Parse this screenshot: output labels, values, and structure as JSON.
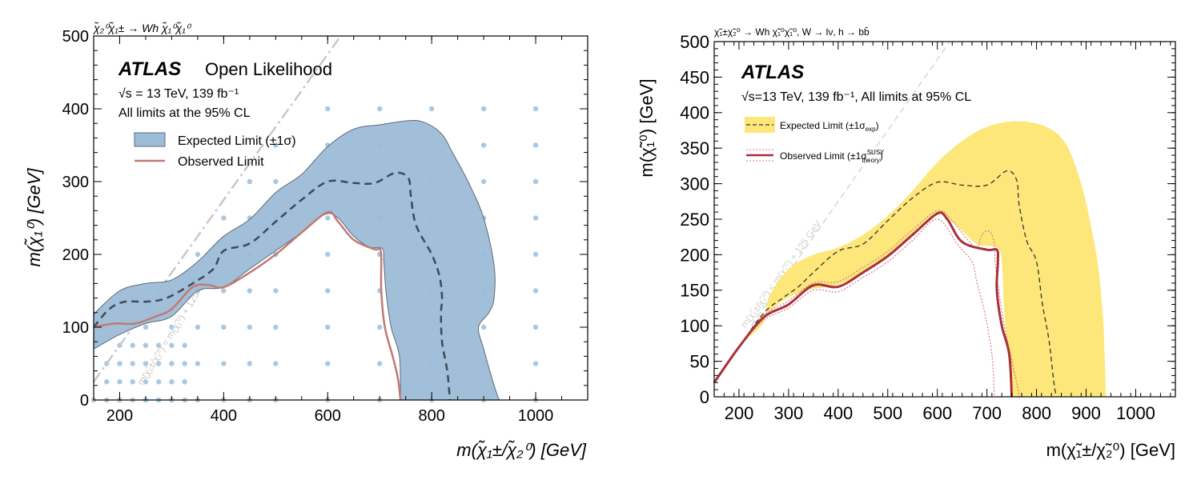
{
  "chart_data": [
    {
      "type": "area",
      "process_label": "χ̃₂⁰χ̃₁± → Wh χ̃₁⁰χ̃₁⁰",
      "experiment": "ATLAS",
      "subtitle": "Open Likelihood",
      "energy_label": "√s = 13 TeV, 139 fb⁻¹",
      "cl_label": "All limits at the 95% CL",
      "xlabel": "m(χ̃₁±/χ̃₂⁰) [GeV]",
      "ylabel": "m(χ̃₁⁰) [GeV]",
      "xlim": [
        150,
        1100
      ],
      "ylim": [
        0,
        500
      ],
      "xticks": [
        200,
        400,
        600,
        800,
        1000
      ],
      "yticks": [
        0,
        100,
        200,
        300,
        400,
        500
      ],
      "diagonal_label": "m(χ̃₁±/χ̃₂⁰) = m(χ̃₁⁰) + 125 GeV",
      "legend": [
        "Expected Limit (±1σ)",
        "Observed Limit"
      ],
      "colors": {
        "band": "#9dbcd8",
        "band_edge": "#5d6a78",
        "expected": "#3d4a58",
        "observed": "#c07a72",
        "points": "#a9c8e2",
        "diag": "#c8c8c8"
      },
      "band_upper": [
        [
          150,
          118
        ],
        [
          200,
          150
        ],
        [
          250,
          160
        ],
        [
          300,
          165
        ],
        [
          350,
          190
        ],
        [
          400,
          225
        ],
        [
          450,
          248
        ],
        [
          500,
          285
        ],
        [
          550,
          310
        ],
        [
          600,
          348
        ],
        [
          650,
          372
        ],
        [
          700,
          378
        ],
        [
          760,
          384
        ],
        [
          790,
          380
        ],
        [
          820,
          365
        ],
        [
          840,
          340
        ],
        [
          870,
          300
        ],
        [
          900,
          250
        ],
        [
          920,
          185
        ],
        [
          920,
          140
        ],
        [
          910,
          120
        ],
        [
          890,
          100
        ],
        [
          900,
          70
        ],
        [
          920,
          20
        ],
        [
          930,
          0
        ]
      ],
      "band_lower": [
        [
          150,
          70
        ],
        [
          200,
          90
        ],
        [
          250,
          105
        ],
        [
          300,
          115
        ],
        [
          350,
          150
        ],
        [
          400,
          155
        ],
        [
          450,
          180
        ],
        [
          500,
          205
        ],
        [
          550,
          230
        ],
        [
          595,
          255
        ],
        [
          620,
          250
        ],
        [
          650,
          225
        ],
        [
          680,
          210
        ],
        [
          705,
          208
        ],
        [
          708,
          190
        ],
        [
          712,
          150
        ],
        [
          722,
          100
        ],
        [
          738,
          60
        ],
        [
          740,
          0
        ]
      ],
      "expected": [
        [
          150,
          100
        ],
        [
          180,
          125
        ],
        [
          210,
          135
        ],
        [
          250,
          135
        ],
        [
          290,
          140
        ],
        [
          340,
          160
        ],
        [
          380,
          180
        ],
        [
          400,
          205
        ],
        [
          450,
          215
        ],
        [
          500,
          245
        ],
        [
          550,
          275
        ],
        [
          600,
          300
        ],
        [
          650,
          298
        ],
        [
          690,
          298
        ],
        [
          730,
          312
        ],
        [
          755,
          305
        ],
        [
          760,
          280
        ],
        [
          770,
          240
        ],
        [
          800,
          200
        ],
        [
          815,
          170
        ],
        [
          820,
          140
        ],
        [
          818,
          120
        ],
        [
          820,
          80
        ],
        [
          830,
          40
        ],
        [
          835,
          0
        ]
      ],
      "observed": [
        [
          150,
          100
        ],
        [
          190,
          105
        ],
        [
          230,
          105
        ],
        [
          270,
          115
        ],
        [
          300,
          125
        ],
        [
          340,
          155
        ],
        [
          370,
          158
        ],
        [
          400,
          155
        ],
        [
          450,
          175
        ],
        [
          500,
          200
        ],
        [
          550,
          230
        ],
        [
          600,
          258
        ],
        [
          620,
          245
        ],
        [
          650,
          220
        ],
        [
          690,
          207
        ],
        [
          700,
          208
        ],
        [
          703,
          195
        ],
        [
          703,
          150
        ],
        [
          710,
          100
        ],
        [
          725,
          60
        ],
        [
          735,
          30
        ],
        [
          740,
          0
        ]
      ],
      "grid_points_note": "signal grid model points"
    },
    {
      "type": "area",
      "process_label": "χ̃₁±χ̃₂⁰ → Wh χ̃₁⁰χ̃₁⁰, W → lν, h → bb̄",
      "experiment": "ATLAS",
      "energy_label": "√s=13 TeV, 139 fb⁻¹, All limits at 95% CL",
      "xlabel": "m(χ̃₁±/χ̃₂⁰) [GeV]",
      "ylabel": "m(χ̃₁⁰) [GeV]",
      "xlim": [
        150,
        1080
      ],
      "ylim": [
        0,
        500
      ],
      "xticks": [
        200,
        300,
        400,
        500,
        600,
        700,
        800,
        900,
        1000
      ],
      "yticks": [
        0,
        50,
        100,
        150,
        200,
        250,
        300,
        350,
        400,
        450,
        500
      ],
      "diagonal_label": "m(χ̃₁±/χ̃₂⁰) < m(χ̃₁⁰) + 125 GeV",
      "legend": [
        "Expected Limit (±1σexp)",
        "Observed Limit (±1σtheory SUSY)"
      ],
      "legend_exp": "Expected Limit (±1σ",
      "legend_exp_sub": "exp",
      "legend_obs": "Observed Limit (±1σ",
      "legend_obs_sup": "SUSY",
      "legend_obs_sub": "theory",
      "colors": {
        "band": "#fde77a",
        "expected": "#333333",
        "observed": "#a8303c",
        "obs_dotted": "#d07b87",
        "diag": "#d0d0d0"
      },
      "band_upper": [
        [
          150,
          20
        ],
        [
          200,
          70
        ],
        [
          250,
          105
        ],
        [
          260,
          140
        ],
        [
          300,
          180
        ],
        [
          350,
          200
        ],
        [
          400,
          210
        ],
        [
          450,
          228
        ],
        [
          500,
          255
        ],
        [
          550,
          290
        ],
        [
          600,
          330
        ],
        [
          650,
          360
        ],
        [
          700,
          380
        ],
        [
          760,
          388
        ],
        [
          820,
          380
        ],
        [
          860,
          355
        ],
        [
          890,
          300
        ],
        [
          910,
          240
        ],
        [
          925,
          180
        ],
        [
          935,
          100
        ],
        [
          940,
          0
        ]
      ],
      "band_lower": [
        [
          150,
          20
        ],
        [
          200,
          70
        ],
        [
          240,
          110
        ],
        [
          260,
          120
        ],
        [
          300,
          140
        ],
        [
          350,
          152
        ],
        [
          400,
          158
        ],
        [
          450,
          175
        ],
        [
          500,
          200
        ],
        [
          550,
          230
        ],
        [
          600,
          258
        ],
        [
          640,
          240
        ],
        [
          680,
          215
        ],
        [
          720,
          210
        ],
        [
          730,
          190
        ],
        [
          735,
          120
        ],
        [
          745,
          40
        ],
        [
          750,
          0
        ]
      ],
      "expected": [
        [
          150,
          20
        ],
        [
          200,
          70
        ],
        [
          250,
          118
        ],
        [
          290,
          140
        ],
        [
          320,
          155
        ],
        [
          350,
          175
        ],
        [
          400,
          205
        ],
        [
          450,
          215
        ],
        [
          500,
          248
        ],
        [
          550,
          280
        ],
        [
          600,
          302
        ],
        [
          650,
          298
        ],
        [
          700,
          298
        ],
        [
          740,
          318
        ],
        [
          760,
          305
        ],
        [
          765,
          270
        ],
        [
          780,
          220
        ],
        [
          800,
          190
        ],
        [
          812,
          130
        ],
        [
          825,
          80
        ],
        [
          835,
          20
        ],
        [
          840,
          0
        ]
      ],
      "observed": [
        [
          150,
          20
        ],
        [
          200,
          70
        ],
        [
          250,
          112
        ],
        [
          300,
          130
        ],
        [
          350,
          157
        ],
        [
          400,
          155
        ],
        [
          450,
          175
        ],
        [
          500,
          198
        ],
        [
          550,
          228
        ],
        [
          600,
          258
        ],
        [
          620,
          250
        ],
        [
          650,
          218
        ],
        [
          700,
          207
        ],
        [
          720,
          207
        ],
        [
          722,
          190
        ],
        [
          720,
          150
        ],
        [
          730,
          100
        ],
        [
          745,
          60
        ],
        [
          750,
          0
        ]
      ],
      "observed_up": [
        [
          150,
          20
        ],
        [
          200,
          70
        ],
        [
          250,
          115
        ],
        [
          300,
          135
        ],
        [
          350,
          160
        ],
        [
          400,
          162
        ],
        [
          450,
          182
        ],
        [
          500,
          205
        ],
        [
          550,
          235
        ],
        [
          600,
          262
        ],
        [
          630,
          248
        ],
        [
          660,
          222
        ],
        [
          680,
          210
        ],
        [
          690,
          228
        ],
        [
          705,
          233
        ],
        [
          715,
          215
        ],
        [
          718,
          180
        ],
        [
          735,
          100
        ],
        [
          760,
          20
        ],
        [
          765,
          0
        ]
      ],
      "observed_down": [
        [
          150,
          20
        ],
        [
          200,
          70
        ],
        [
          250,
          108
        ],
        [
          300,
          125
        ],
        [
          350,
          150
        ],
        [
          400,
          148
        ],
        [
          450,
          168
        ],
        [
          500,
          190
        ],
        [
          550,
          220
        ],
        [
          600,
          250
        ],
        [
          640,
          215
        ],
        [
          670,
          190
        ],
        [
          680,
          160
        ],
        [
          695,
          120
        ],
        [
          710,
          60
        ],
        [
          715,
          0
        ]
      ]
    }
  ]
}
